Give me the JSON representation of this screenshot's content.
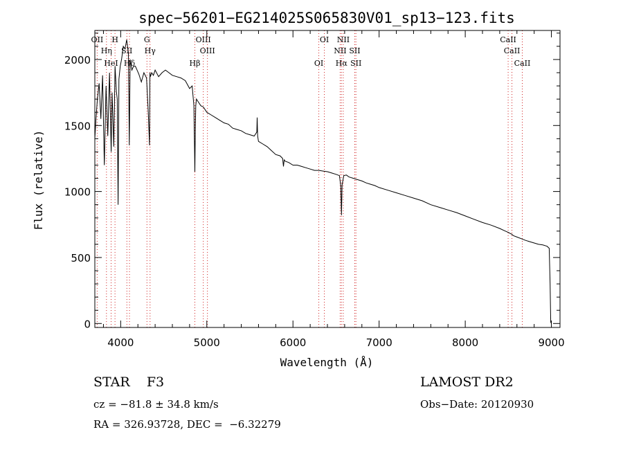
{
  "chart_data": {
    "type": "line",
    "title": "spec−56201−EG214025S065830V01_sp13−123.fits",
    "xlabel": "Wavelength (Å)",
    "ylabel": "Flux (relative)",
    "xlim": [
      3700,
      9100
    ],
    "ylim": [
      -30,
      2220
    ],
    "xticks": [
      4000,
      5000,
      6000,
      7000,
      8000,
      9000
    ],
    "yticks": [
      0,
      500,
      1000,
      1500,
      2000
    ],
    "xtick_labels": [
      "4000",
      "5000",
      "6000",
      "7000",
      "8000",
      "9000"
    ],
    "ytick_labels": [
      "0",
      "500",
      "1000",
      "1500",
      "2000"
    ],
    "grid": false,
    "series": [
      {
        "x": [
          3700,
          3712,
          3730,
          3750,
          3770,
          3790,
          3810,
          3830,
          3850,
          3870,
          3890,
          3900,
          3920,
          3935,
          3950,
          3960,
          3970,
          3980,
          3995,
          4010,
          4030,
          4050,
          4070,
          4090,
          4100,
          4110,
          4130,
          4150,
          4170,
          4190,
          4210,
          4240,
          4270,
          4300,
          4320,
          4335,
          4340,
          4345,
          4360,
          4380,
          4400,
          4440,
          4480,
          4520,
          4560,
          4600,
          4650,
          4700,
          4750,
          4800,
          4830,
          4850,
          4858,
          4861,
          4866,
          4872,
          4880,
          4900,
          4930,
          4960,
          5000,
          5050,
          5100,
          5150,
          5200,
          5250,
          5300,
          5350,
          5400,
          5450,
          5500,
          5550,
          5580,
          5584,
          5590,
          5600,
          5650,
          5700,
          5750,
          5800,
          5850,
          5880,
          5890,
          5898,
          5910,
          5950,
          6000,
          6050,
          6100,
          6150,
          6200,
          6250,
          6300,
          6350,
          6400,
          6450,
          6500,
          6540,
          6555,
          6563,
          6570,
          6590,
          6620,
          6650,
          6700,
          6750,
          6800,
          6850,
          6900,
          6950,
          7000,
          7100,
          7200,
          7300,
          7400,
          7500,
          7600,
          7700,
          7800,
          7900,
          8000,
          8100,
          8200,
          8300,
          8400,
          8450,
          8500,
          8542,
          8560,
          8600,
          8662,
          8700,
          8750,
          8800,
          8850,
          8900,
          8950,
          8975,
          8985,
          8992,
          9000
        ],
        "values": [
          1400,
          1540,
          1700,
          1820,
          1550,
          1880,
          1200,
          1800,
          1420,
          1900,
          1300,
          1750,
          1340,
          1950,
          1760,
          1700,
          900,
          1850,
          1950,
          2000,
          2100,
          2080,
          2150,
          2050,
          1350,
          2000,
          1920,
          1950,
          1950,
          1920,
          1890,
          1830,
          1900,
          1860,
          1600,
          1350,
          1900,
          1870,
          1900,
          1880,
          1920,
          1870,
          1900,
          1920,
          1900,
          1880,
          1870,
          1860,
          1840,
          1780,
          1800,
          1650,
          1300,
          1150,
          1450,
          1650,
          1700,
          1680,
          1650,
          1640,
          1600,
          1580,
          1560,
          1540,
          1520,
          1510,
          1480,
          1470,
          1460,
          1440,
          1430,
          1420,
          1450,
          1560,
          1420,
          1380,
          1360,
          1340,
          1310,
          1280,
          1270,
          1250,
          1190,
          1240,
          1230,
          1220,
          1200,
          1200,
          1190,
          1180,
          1170,
          1160,
          1160,
          1155,
          1150,
          1140,
          1130,
          1120,
          1040,
          820,
          1050,
          1120,
          1125,
          1110,
          1100,
          1090,
          1080,
          1065,
          1055,
          1045,
          1030,
          1010,
          990,
          970,
          950,
          930,
          900,
          880,
          860,
          840,
          815,
          790,
          765,
          745,
          720,
          705,
          690,
          675,
          665,
          655,
          640,
          630,
          620,
          610,
          600,
          595,
          585,
          570,
          300,
          10,
          0
        ]
      }
    ],
    "line_markers": [
      {
        "label": "OII",
        "x": 3727
      },
      {
        "label": "Hη",
        "x": 3835
      },
      {
        "label": "HeI",
        "x": 3889
      },
      {
        "label": "H",
        "x": 3934
      },
      {
        "label": "SII",
        "x": 4072
      },
      {
        "label": "Hδ",
        "x": 4102
      },
      {
        "label": "G",
        "x": 4305
      },
      {
        "label": "Hγ",
        "x": 4341
      },
      {
        "label": "Hβ",
        "x": 4861
      },
      {
        "label": "OIII",
        "x": 4959
      },
      {
        "label": "OIII",
        "x": 5007
      },
      {
        "label": "OI",
        "x": 6300
      },
      {
        "label": "OI",
        "x": 6364
      },
      {
        "label": "NII",
        "x": 6548
      },
      {
        "label": "Hα",
        "x": 6563
      },
      {
        "label": "NII",
        "x": 6584
      },
      {
        "label": "SII",
        "x": 6717
      },
      {
        "label": "SII",
        "x": 6731
      },
      {
        "label": "CaII",
        "x": 8498
      },
      {
        "label": "CaII",
        "x": 8542
      },
      {
        "label": "CaII",
        "x": 8662
      }
    ]
  },
  "info": {
    "class_line": "STAR    F3",
    "cz_line": "cz = −81.8 ± 34.8 km/s",
    "coords_line": "RA = 326.93728, DEC =  −6.32279",
    "survey": "LAMOST DR2",
    "obs_date": "Obs−Date: 20120930"
  }
}
